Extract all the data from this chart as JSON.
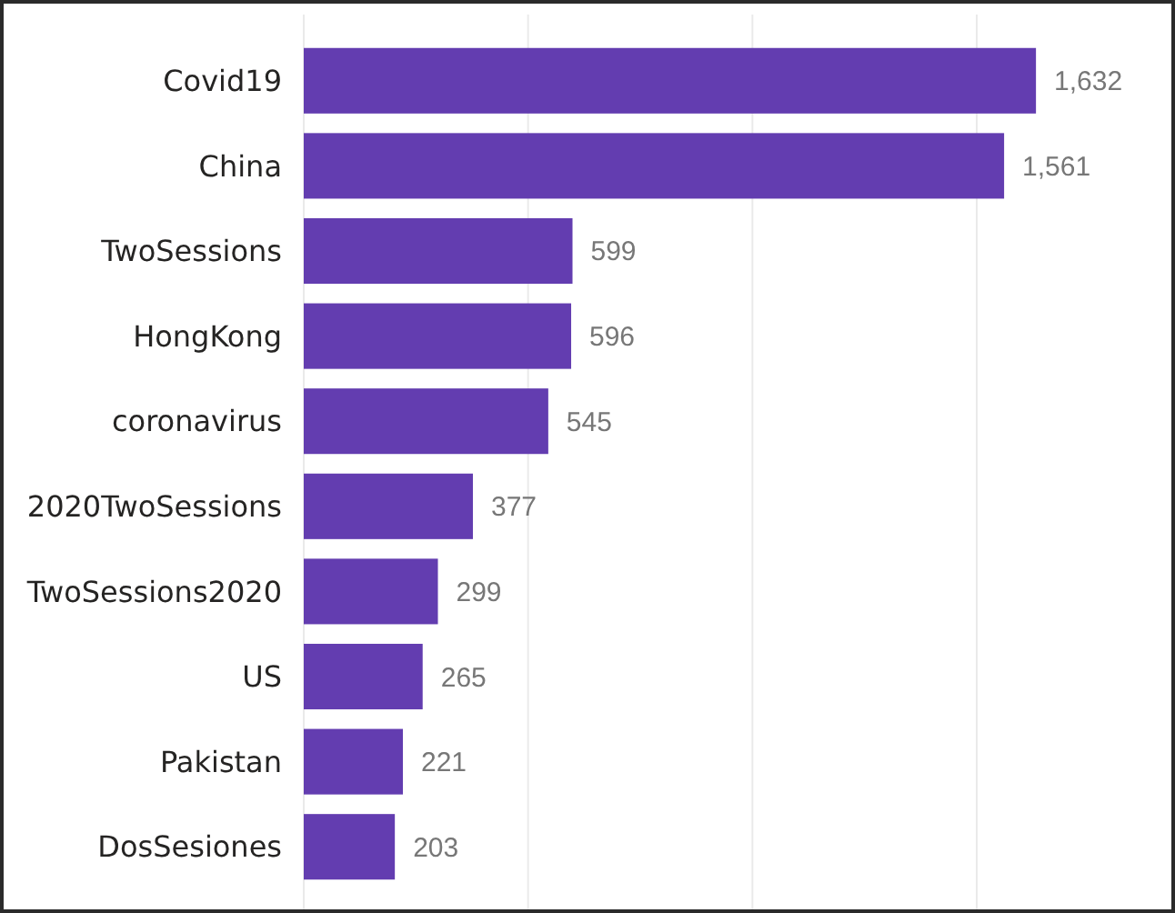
{
  "chart_data": {
    "type": "bar",
    "orientation": "horizontal",
    "categories": [
      "Covid19",
      "China",
      "TwoSessions",
      "HongKong",
      "coronavirus",
      "2020TwoSessions",
      "TwoSessions2020",
      "US",
      "Pakistan",
      "DosSesiones"
    ],
    "values": [
      1632,
      1561,
      599,
      596,
      545,
      377,
      299,
      265,
      221,
      203
    ],
    "value_labels": [
      "1,632",
      "1,561",
      "599",
      "596",
      "545",
      "377",
      "299",
      "265",
      "221",
      "203"
    ],
    "color": "#633db0",
    "xticks": [
      {
        "value": 0,
        "label": null
      },
      {
        "value": 500,
        "label": null
      },
      {
        "value": 1000,
        "label": null
      },
      {
        "value": 1500,
        "label": null
      }
    ],
    "grid": "x",
    "tick_labels": "y"
  }
}
